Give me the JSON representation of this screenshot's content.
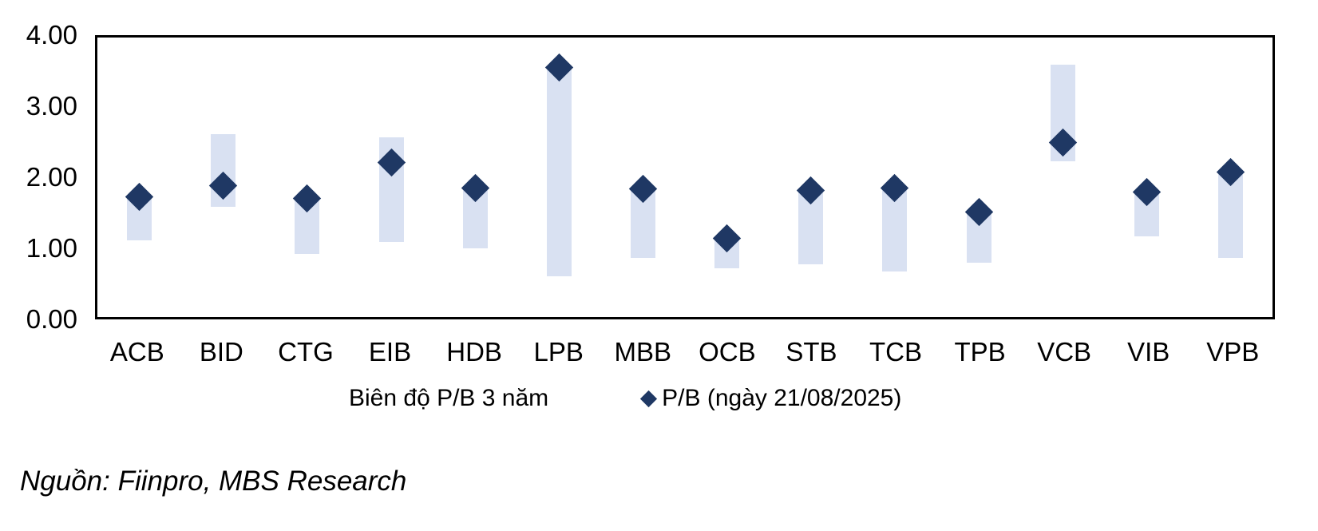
{
  "legend": {
    "range_label": "Biên độ P/B 3 năm",
    "pb_label": "P/B (ngày 21/08/2025)"
  },
  "source_note": "Nguồn: Fiinpro, MBS Research",
  "colors": {
    "range_bar": "#d9e1f2",
    "pb_diamond": "#1f3864",
    "axis": "#000000"
  },
  "chart_data": {
    "type": "bar",
    "subtype": "floating-range-bars-with-diamond-markers",
    "title": "",
    "xlabel": "",
    "ylabel": "",
    "categories": [
      "ACB",
      "BID",
      "CTG",
      "EIB",
      "HDB",
      "LPB",
      "MBB",
      "OCB",
      "STB",
      "TCB",
      "TPB",
      "VCB",
      "VIB",
      "VPB"
    ],
    "series": [
      {
        "name": "Biên độ P/B 3 năm",
        "type": "range-bar",
        "low": [
          1.1,
          1.58,
          0.9,
          1.08,
          0.98,
          0.58,
          0.85,
          0.7,
          0.76,
          0.65,
          0.78,
          2.23,
          1.15,
          0.85
        ],
        "high": [
          1.72,
          2.62,
          1.7,
          2.57,
          1.85,
          3.57,
          1.84,
          1.13,
          1.81,
          1.85,
          1.5,
          3.61,
          1.79,
          2.08
        ]
      },
      {
        "name": "P/B (ngày 21/08/2025)",
        "type": "scatter-diamond",
        "values": [
          1.72,
          1.88,
          1.7,
          2.21,
          1.85,
          3.57,
          1.84,
          1.13,
          1.81,
          1.85,
          1.5,
          2.5,
          1.79,
          2.08
        ]
      }
    ],
    "ylim": [
      0,
      4
    ],
    "yticks": [
      "0.00",
      "1.00",
      "2.00",
      "3.00",
      "4.00"
    ],
    "grid": false,
    "legend_position": "bottom"
  }
}
